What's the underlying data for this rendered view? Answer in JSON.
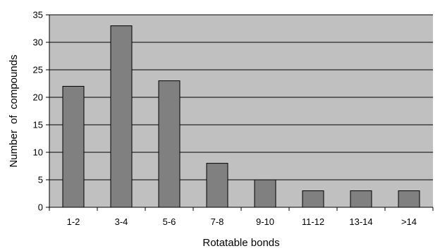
{
  "chart_data": {
    "type": "bar",
    "categories": [
      "1-2",
      "3-4",
      "5-6",
      "7-8",
      "9-10",
      "11-12",
      "13-14",
      ">14"
    ],
    "values": [
      22,
      33,
      23,
      8,
      5,
      3,
      3,
      3
    ],
    "xlabel": "Rotatable bonds",
    "ylabel": "Number  of  compounds",
    "ylim": [
      0,
      35
    ],
    "yticks": [
      0,
      5,
      10,
      15,
      20,
      25,
      30,
      35
    ],
    "grid": true,
    "legend": "none",
    "colors": {
      "plot_background": "#c0c0c0",
      "bar_fill": "#808080",
      "bar_stroke": "#000000",
      "gridline": "#000000"
    }
  }
}
